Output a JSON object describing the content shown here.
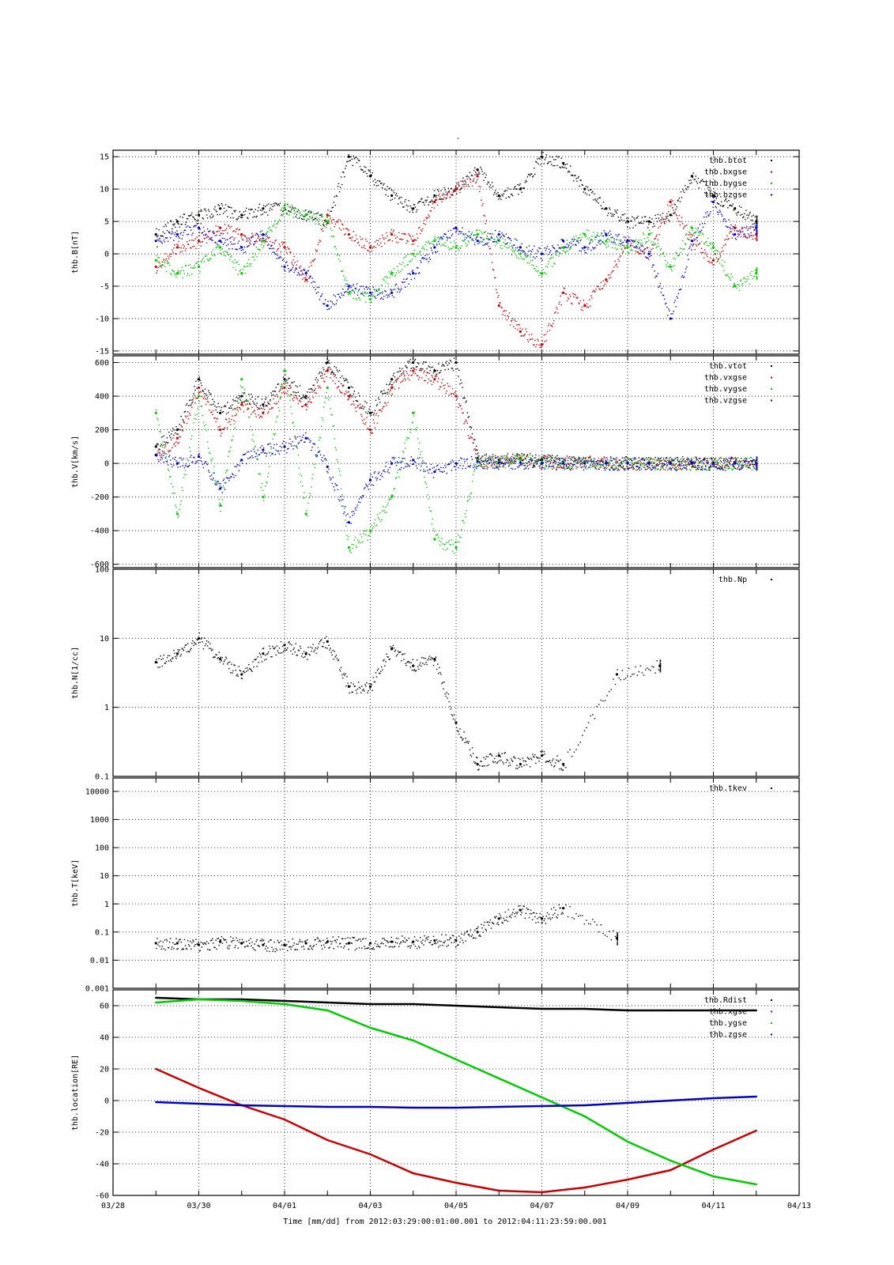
{
  "figure": {
    "top_mark": "-",
    "xaxis_label": "Time [mm/dd]  from 2012:03:29:00:01:00.001  to  2012:04:11:23:59:00.001",
    "x_ticks": [
      "03/28",
      "03/30",
      "04/01",
      "04/03",
      "04/05",
      "04/07",
      "04/09",
      "04/11",
      "04/13"
    ],
    "x_range_days": [
      0,
      16
    ],
    "colors": {
      "black": "#000000",
      "red": "#cc0000",
      "green": "#00cc00",
      "blue": "#0000cc"
    }
  },
  "chart_data": [
    {
      "type": "scatter",
      "ylabel": "thb.B[nT]",
      "ylim": [
        -15.5,
        16
      ],
      "y_ticks": [
        "15",
        "10",
        "5",
        "0",
        "-5",
        "-10",
        "-15"
      ],
      "legend": {
        "placement": "top-right",
        "entries": [
          "thb.btot",
          "thb.bxgse",
          "thb.bygse",
          "thb.bzgse"
        ]
      },
      "grid": true,
      "x": [
        "03/29 00:00",
        "03/29 12:00",
        "03/30 00:00",
        "03/30 12:00",
        "03/31 00:00",
        "03/31 12:00",
        "04/01 00:00",
        "04/01 12:00",
        "04/02 00:00",
        "04/02 12:00",
        "04/03 00:00",
        "04/03 12:00",
        "04/04 00:00",
        "04/04 12:00",
        "04/05 00:00",
        "04/05 12:00",
        "04/06 00:00",
        "04/06 12:00",
        "04/07 00:00",
        "04/07 12:00",
        "04/08 00:00",
        "04/08 12:00",
        "04/09 00:00",
        "04/09 12:00",
        "04/10 00:00",
        "04/10 12:00",
        "04/11 00:00",
        "04/11 12:00",
        "04/12 00:00"
      ],
      "series": [
        {
          "name": "thb.btot",
          "color": "#000000",
          "values": [
            3,
            5,
            6,
            7,
            6,
            7,
            7,
            6,
            5,
            15,
            12,
            9,
            7,
            9,
            10,
            13,
            9,
            10,
            15,
            14,
            10,
            7,
            5,
            5,
            6,
            12,
            9,
            7,
            5
          ]
        },
        {
          "name": "thb.bxgse",
          "color": "#cc0000",
          "values": [
            -2,
            1,
            2,
            4,
            3,
            2,
            1,
            -4,
            6,
            3,
            1,
            3,
            2,
            8,
            10,
            12,
            -8,
            -12,
            -14,
            -6,
            -8,
            -4,
            2,
            0,
            8,
            2,
            -1,
            4,
            3
          ]
        },
        {
          "name": "thb.bygse",
          "color": "#00cc00",
          "values": [
            -1,
            -3,
            -2,
            1,
            -3,
            2,
            7,
            6,
            5,
            -6,
            -7,
            -3,
            0,
            2,
            1,
            3,
            2,
            0,
            -3,
            1,
            3,
            2,
            1,
            3,
            -2,
            4,
            1,
            -5,
            -3
          ]
        },
        {
          "name": "thb.bzgse",
          "color": "#0000cc",
          "values": [
            2,
            3,
            4,
            2,
            1,
            3,
            -2,
            -3,
            -8,
            -5,
            -6,
            -6,
            -3,
            1,
            4,
            2,
            3,
            1,
            0,
            2,
            1,
            3,
            2,
            0,
            -10,
            2,
            8,
            3,
            4
          ]
        }
      ]
    },
    {
      "type": "scatter",
      "ylabel": "thb.V[km/s]",
      "ylim": [
        -620,
        640
      ],
      "y_ticks": [
        "600",
        "400",
        "200",
        "0",
        "-200",
        "-400",
        "-600"
      ],
      "legend": {
        "placement": "top-right",
        "entries": [
          "thb.vtot",
          "thb.vxgse",
          "thb.vygse",
          "thb.vzgse"
        ]
      },
      "grid": true,
      "x": [
        "03/29 00:00",
        "03/29 12:00",
        "03/30 00:00",
        "03/30 12:00",
        "03/31 00:00",
        "03/31 12:00",
        "04/01 00:00",
        "04/01 12:00",
        "04/02 00:00",
        "04/02 12:00",
        "04/03 00:00",
        "04/03 12:00",
        "04/04 00:00",
        "04/04 12:00",
        "04/05 00:00",
        "04/05 12:00",
        "04/06 00:00",
        "04/06 12:00",
        "04/07 00:00",
        "04/07 12:00",
        "04/08 00:00",
        "04/08 12:00",
        "04/09 00:00",
        "04/09 12:00",
        "04/10 00:00",
        "04/10 12:00",
        "04/11 00:00",
        "04/11 12:00",
        "04/12 00:00"
      ],
      "series": [
        {
          "name": "thb.vtot",
          "color": "#000000",
          "values": [
            100,
            200,
            500,
            300,
            400,
            350,
            500,
            400,
            600,
            450,
            300,
            500,
            600,
            550,
            600,
            30,
            20,
            30,
            20,
            10,
            10,
            5,
            5,
            5,
            5,
            5,
            5,
            5,
            5
          ]
        },
        {
          "name": "thb.vxgse",
          "color": "#cc0000",
          "values": [
            50,
            150,
            450,
            200,
            350,
            300,
            450,
            350,
            550,
            400,
            200,
            450,
            550,
            500,
            400,
            20,
            10,
            20,
            10,
            5,
            5,
            0,
            0,
            0,
            0,
            0,
            0,
            0,
            0
          ]
        },
        {
          "name": "thb.vygse",
          "color": "#00cc00",
          "values": [
            300,
            -300,
            400,
            -250,
            500,
            -200,
            550,
            -300,
            450,
            -500,
            -400,
            -200,
            300,
            -450,
            -500,
            20,
            10,
            20,
            10,
            5,
            5,
            0,
            0,
            0,
            0,
            0,
            0,
            0,
            0
          ]
        },
        {
          "name": "thb.vzgse",
          "color": "#0000cc",
          "values": [
            50,
            0,
            40,
            -150,
            20,
            80,
            100,
            150,
            -20,
            -350,
            -100,
            0,
            20,
            -50,
            0,
            10,
            5,
            5,
            0,
            0,
            0,
            0,
            0,
            0,
            0,
            0,
            0,
            0,
            0
          ]
        }
      ]
    },
    {
      "type": "scatter",
      "ylabel": "thb.N[1/cc]",
      "yscale": "log",
      "ylim": [
        0.1,
        100
      ],
      "y_ticks": [
        "100",
        "10",
        "1",
        "0.1"
      ],
      "legend": {
        "placement": "top-right",
        "entries": [
          "thb.Np"
        ]
      },
      "grid": true,
      "x": [
        "03/29 00:00",
        "03/29 12:00",
        "03/30 00:00",
        "03/30 12:00",
        "03/31 00:00",
        "03/31 12:00",
        "04/01 00:00",
        "04/01 12:00",
        "04/02 00:00",
        "04/02 12:00",
        "04/03 00:00",
        "04/03 12:00",
        "04/04 00:00",
        "04/04 12:00",
        "04/05 00:00",
        "04/05 12:00",
        "04/06 00:00",
        "04/06 12:00",
        "04/07 00:00",
        "04/07 12:00",
        "04/08 18:00",
        "04/09 18:00"
      ],
      "series": [
        {
          "name": "thb.Np",
          "color": "#000000",
          "values": [
            4.5,
            6,
            10,
            5,
            3,
            6,
            8,
            6,
            9,
            2,
            2,
            7,
            4,
            5,
            0.6,
            0.15,
            0.2,
            0.15,
            0.2,
            0.15,
            3,
            4
          ]
        }
      ]
    },
    {
      "type": "scatter",
      "ylabel": "thb.T[keV]",
      "yscale": "log",
      "ylim": [
        0.001,
        30000
      ],
      "y_ticks": [
        "10000",
        "1000",
        "100",
        "10",
        "1",
        "0.1",
        "0.01",
        "0.001"
      ],
      "legend": {
        "placement": "top-right",
        "entries": [
          "thb.tkev"
        ]
      },
      "grid": true,
      "x": [
        "03/29 00:00",
        "03/29 12:00",
        "03/30 00:00",
        "03/30 12:00",
        "03/31 00:00",
        "03/31 12:00",
        "04/01 00:00",
        "04/01 12:00",
        "04/02 00:00",
        "04/02 12:00",
        "04/03 00:00",
        "04/03 12:00",
        "04/04 00:00",
        "04/04 12:00",
        "04/05 00:00",
        "04/05 12:00",
        "04/06 00:00",
        "04/06 12:00",
        "04/07 00:00",
        "04/07 12:00",
        "04/08 18:00"
      ],
      "series": [
        {
          "name": "thb.tkev",
          "color": "#000000",
          "values": [
            0.04,
            0.04,
            0.035,
            0.045,
            0.04,
            0.035,
            0.035,
            0.04,
            0.045,
            0.04,
            0.04,
            0.045,
            0.045,
            0.05,
            0.05,
            0.1,
            0.3,
            0.6,
            0.3,
            0.7,
            0.06
          ]
        }
      ]
    },
    {
      "type": "line",
      "ylabel": "thb.location[RE]",
      "ylim": [
        -60,
        70
      ],
      "y_ticks": [
        "60",
        "40",
        "20",
        "0",
        "-20",
        "-40",
        "-60"
      ],
      "legend": {
        "placement": "top-right",
        "entries": [
          "thb.Rdist",
          "thb.xgse",
          "thb.ygse",
          "thb.zgse"
        ]
      },
      "grid": true,
      "x": [
        "03/29 00:00",
        "03/30 00:00",
        "03/31 00:00",
        "04/01 00:00",
        "04/02 00:00",
        "04/03 00:00",
        "04/04 00:00",
        "04/05 00:00",
        "04/06 00:00",
        "04/07 00:00",
        "04/08 00:00",
        "04/09 00:00",
        "04/10 00:00",
        "04/11 00:00",
        "04/12 00:00"
      ],
      "series": [
        {
          "name": "thb.Rdist",
          "color": "#000000",
          "values": [
            65,
            64,
            64,
            63,
            62,
            61,
            61,
            60,
            59,
            58,
            58,
            57,
            57,
            57,
            57
          ]
        },
        {
          "name": "thb.xgse",
          "color": "#cc0000",
          "values": [
            20,
            8,
            -3,
            -12,
            -25,
            -34,
            -46,
            -52,
            -57,
            -58,
            -55,
            -50,
            -44,
            -31,
            -19
          ]
        },
        {
          "name": "thb.ygse",
          "color": "#00cc00",
          "values": [
            62,
            64,
            63,
            61,
            57,
            46,
            38,
            26,
            14,
            2,
            -10,
            -26,
            -38,
            -48,
            -53
          ]
        },
        {
          "name": "thb.zgse",
          "color": "#0000cc",
          "values": [
            -1,
            -2,
            -3,
            -3.5,
            -4,
            -4,
            -4.5,
            -4.5,
            -4,
            -3.5,
            -3,
            -1.5,
            0,
            1.5,
            2.5
          ]
        }
      ]
    }
  ]
}
